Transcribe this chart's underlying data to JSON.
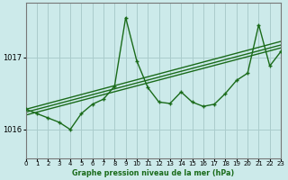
{
  "title": "Graphe pression niveau de la mer (hPa)",
  "bg_color": "#cceaea",
  "line_color": "#1a6b1a",
  "grid_color": "#aacccc",
  "xlim": [
    0,
    23
  ],
  "ylim": [
    1015.6,
    1017.75
  ],
  "yticks": [
    1016,
    1017
  ],
  "xticks": [
    0,
    1,
    2,
    3,
    4,
    5,
    6,
    7,
    8,
    9,
    10,
    11,
    12,
    13,
    14,
    15,
    16,
    17,
    18,
    19,
    20,
    21,
    22,
    23
  ],
  "trend_lines": [
    {
      "x": [
        0,
        23
      ],
      "y": [
        1016.28,
        1017.22
      ]
    },
    {
      "x": [
        0,
        23
      ],
      "y": [
        1016.24,
        1017.17
      ]
    },
    {
      "x": [
        0,
        23
      ],
      "y": [
        1016.2,
        1017.13
      ]
    }
  ],
  "zigzag": {
    "x": [
      0,
      1,
      2,
      3,
      4,
      5,
      6,
      7,
      8,
      9,
      10,
      11,
      12,
      13,
      14,
      15,
      16,
      17,
      18,
      19,
      20,
      21,
      22,
      23
    ],
    "y": [
      1016.28,
      1016.22,
      1016.16,
      1016.1,
      1016.0,
      1016.22,
      1016.35,
      1016.42,
      1016.6,
      1017.55,
      1016.95,
      1016.58,
      1016.38,
      1016.36,
      1016.52,
      1016.38,
      1016.32,
      1016.35,
      1016.5,
      1016.68,
      1016.78,
      1017.45,
      1016.88,
      1017.08
    ]
  }
}
